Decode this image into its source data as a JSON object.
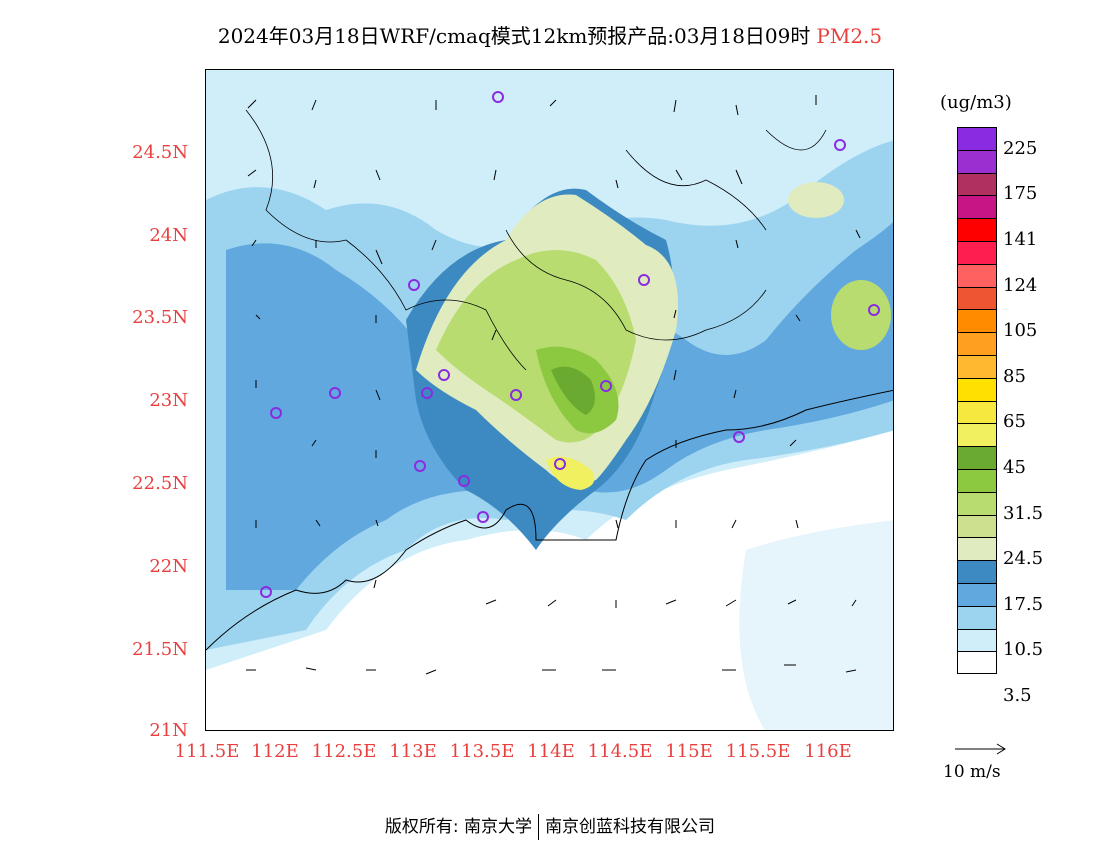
{
  "title": {
    "main": "2024年03月18日WRF/cmaq模式12km预报产品:03月18日09时",
    "variable": "PM2.5"
  },
  "lat_labels": [
    "24.5N",
    "24N",
    "23.5N",
    "23N",
    "22.5N",
    "22N",
    "21.5N",
    "21N"
  ],
  "lon_labels": [
    "111.5E",
    "112E",
    "112.5E",
    "113E",
    "113.5E",
    "114E",
    "114.5E",
    "115E",
    "115.5E",
    "116E"
  ],
  "colorbar": {
    "unit": "(ug/m3)",
    "labels": [
      "225",
      "175",
      "141",
      "124",
      "105",
      "85",
      "65",
      "45",
      "31.5",
      "24.5",
      "17.5",
      "10.5",
      "3.5"
    ],
    "colors": [
      "#8a2be2",
      "#9b30d0",
      "#b03060",
      "#c71585",
      "#ff0000",
      "#ff1f4f",
      "#ff6060",
      "#ee5533",
      "#ff8c00",
      "#ffa020",
      "#ffb830",
      "#ffe000",
      "#f7e840",
      "#f0f060",
      "#6aaa30",
      "#8cc840",
      "#b8dc70",
      "#cce090",
      "#e0ecc0",
      "#3d8ac2",
      "#60a8de",
      "#9cd4f0",
      "#cfeefa",
      "#ffffff"
    ],
    "wind_ref": "10 m/s"
  },
  "footer": {
    "left": "版权所有: 南京大学",
    "right": "南京创蓝科技有限公司"
  },
  "colors": {
    "accent": "#e8403f",
    "station": "#8a2be2"
  }
}
